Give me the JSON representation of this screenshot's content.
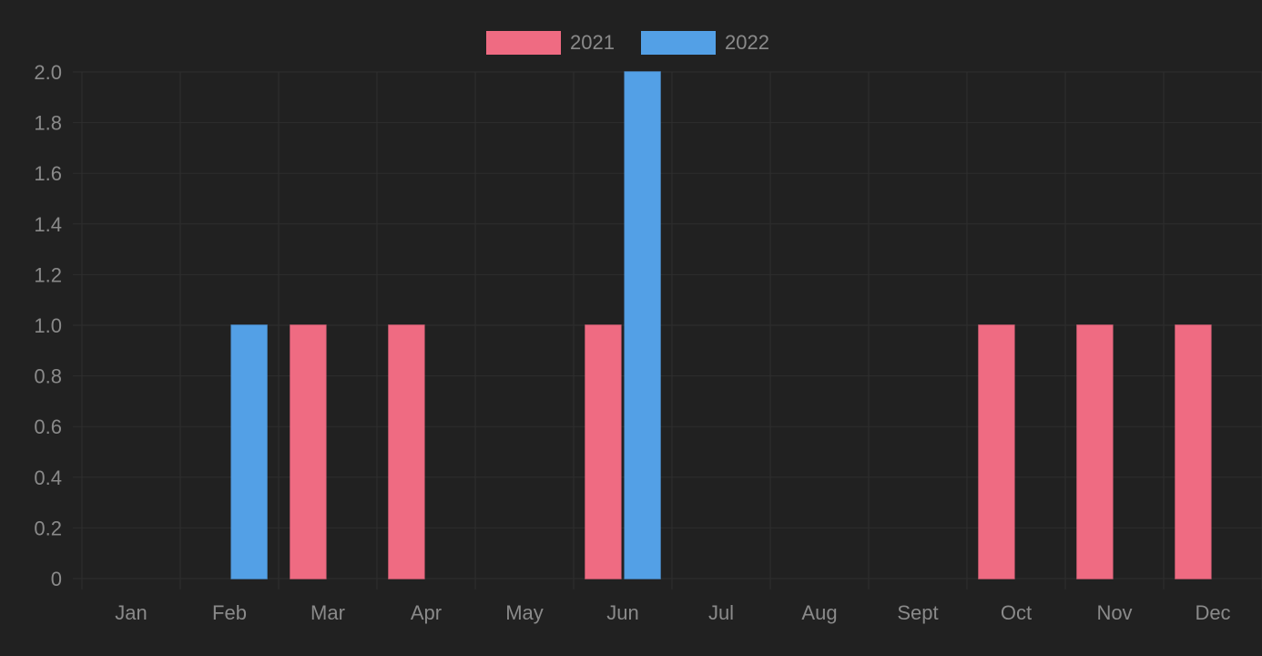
{
  "chart_data": {
    "type": "bar",
    "categories": [
      "Jan",
      "Feb",
      "Mar",
      "Apr",
      "May",
      "Jun",
      "Jul",
      "Aug",
      "Sept",
      "Oct",
      "Nov",
      "Dec"
    ],
    "series": [
      {
        "name": "2021",
        "color": "#ef6b82",
        "values": [
          0,
          0,
          1,
          1,
          0,
          1,
          0,
          0,
          0,
          1,
          1,
          1
        ]
      },
      {
        "name": "2022",
        "color": "#53a0e6",
        "values": [
          0,
          1,
          0,
          0,
          0,
          2,
          0,
          0,
          0,
          0,
          0,
          0
        ]
      }
    ],
    "title": "",
    "xlabel": "",
    "ylabel": "",
    "ylim": [
      0,
      2.0
    ],
    "yticks": [
      "0",
      "0.2",
      "0.4",
      "0.6",
      "0.8",
      "1.0",
      "1.2",
      "1.4",
      "1.6",
      "1.8",
      "2.0"
    ],
    "grid": true,
    "legend_position": "top-center",
    "background_color": "#212121",
    "grid_color": "#2e2e2e",
    "tick_color": "#8a8a8a"
  }
}
